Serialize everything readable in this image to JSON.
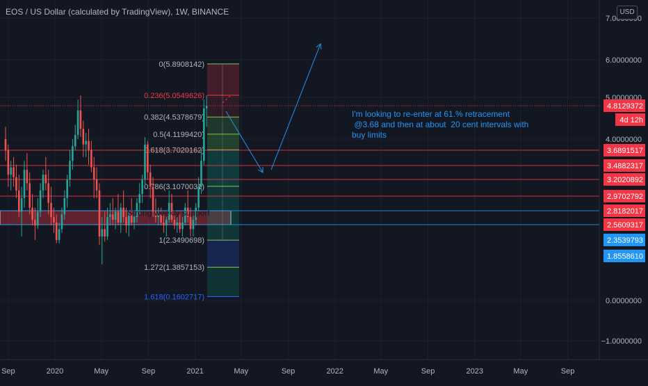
{
  "header": {
    "title": "EOS / US Dollar (calculated by TradingView), 1W, BINANCE",
    "currency": "USD"
  },
  "chart_data": {
    "type": "candlestick",
    "title": "EOS / US Dollar (calculated by TradingView), 1W, BINANCE",
    "price_axis": {
      "labels": [
        "7.0000000",
        "6.0000000",
        "5.0000000",
        "4.0000000",
        "0.0000000",
        "−1.0000000"
      ],
      "values": [
        7,
        6,
        5,
        4,
        0,
        -1
      ]
    },
    "time_axis": {
      "labels": [
        "Sep",
        "2020",
        "May",
        "Sep",
        "2021",
        "May",
        "Sep",
        "2022",
        "May",
        "Sep",
        "2023",
        "May",
        "Sep"
      ],
      "dates": [
        "2019-09-01",
        "2020-01-01",
        "2020-05-01",
        "2020-09-01",
        "2021-01-01",
        "2021-05-01",
        "2021-09-01",
        "2022-01-01",
        "2022-05-01",
        "2022-09-01",
        "2023-01-01",
        "2023-05-01",
        "2023-09-01"
      ]
    },
    "candles": [
      [
        4.0,
        4.3,
        3.55,
        3.7
      ],
      [
        3.7,
        3.85,
        3.1,
        3.3
      ],
      [
        3.3,
        3.55,
        3.05,
        3.45
      ],
      [
        3.45,
        3.6,
        3.1,
        3.25
      ],
      [
        3.25,
        3.5,
        2.95,
        3.05
      ],
      [
        3.05,
        3.3,
        2.7,
        2.8
      ],
      [
        2.8,
        3.1,
        2.4,
        2.95
      ],
      [
        2.95,
        3.55,
        2.85,
        3.4
      ],
      [
        3.4,
        3.65,
        3.05,
        3.15
      ],
      [
        3.15,
        3.35,
        2.75,
        2.85
      ],
      [
        2.85,
        3.0,
        2.55,
        2.65
      ],
      [
        2.65,
        2.85,
        2.35,
        2.55
      ],
      [
        2.55,
        2.95,
        2.5,
        2.8
      ],
      [
        2.8,
        3.15,
        2.7,
        3.05
      ],
      [
        3.05,
        3.4,
        2.95,
        3.3
      ],
      [
        3.3,
        3.6,
        3.05,
        3.15
      ],
      [
        3.15,
        3.4,
        2.75,
        2.9
      ],
      [
        2.9,
        3.1,
        2.55,
        2.7
      ],
      [
        2.7,
        2.85,
        2.45,
        2.6
      ],
      [
        2.6,
        2.75,
        2.25,
        2.35
      ],
      [
        2.35,
        2.6,
        2.25,
        2.5
      ],
      [
        2.5,
        2.85,
        2.45,
        2.75
      ],
      [
        2.75,
        3.05,
        2.65,
        2.95
      ],
      [
        2.95,
        3.3,
        2.85,
        3.2
      ],
      [
        3.2,
        3.7,
        3.1,
        3.55
      ],
      [
        3.55,
        4.0,
        3.4,
        3.8
      ],
      [
        3.8,
        4.35,
        3.7,
        4.1
      ],
      [
        4.1,
        4.95,
        4.0,
        4.7
      ],
      [
        4.7,
        5.05,
        4.05,
        4.25
      ],
      [
        4.25,
        4.45,
        3.6,
        3.85
      ],
      [
        3.85,
        4.15,
        3.6,
        3.95
      ],
      [
        3.95,
        4.25,
        3.5,
        3.7
      ],
      [
        3.7,
        3.95,
        3.35,
        3.45
      ],
      [
        3.45,
        3.6,
        2.95,
        3.2
      ],
      [
        3.2,
        3.45,
        2.95,
        3.05
      ],
      [
        3.05,
        3.15,
        2.2,
        2.4
      ],
      [
        2.4,
        2.7,
        1.5,
        2.5
      ],
      [
        2.5,
        2.8,
        2.3,
        2.4
      ],
      [
        2.4,
        2.85,
        2.35,
        2.7
      ],
      [
        2.7,
        2.9,
        2.55,
        2.75
      ],
      [
        2.75,
        2.95,
        2.55,
        2.65
      ],
      [
        2.65,
        2.85,
        2.5,
        2.8
      ],
      [
        2.8,
        3.0,
        2.55,
        2.6
      ],
      [
        2.6,
        2.9,
        2.45,
        2.85
      ],
      [
        2.85,
        3.05,
        2.6,
        2.7
      ],
      [
        2.7,
        2.85,
        2.45,
        2.55
      ],
      [
        2.55,
        2.8,
        2.4,
        2.75
      ],
      [
        2.75,
        2.95,
        2.55,
        2.6
      ],
      [
        2.6,
        2.8,
        2.5,
        2.7
      ],
      [
        2.7,
        2.95,
        2.6,
        2.9
      ],
      [
        2.9,
        3.15,
        2.75,
        3.0
      ],
      [
        3.0,
        3.3,
        2.9,
        3.2
      ],
      [
        3.2,
        4.05,
        3.1,
        3.85
      ],
      [
        3.85,
        3.95,
        3.2,
        3.35
      ],
      [
        3.35,
        3.5,
        2.95,
        3.1
      ],
      [
        3.1,
        3.25,
        2.7,
        2.8
      ],
      [
        2.8,
        2.95,
        2.6,
        2.7
      ],
      [
        2.7,
        2.85,
        2.55,
        2.75
      ],
      [
        2.75,
        2.85,
        2.55,
        2.6
      ],
      [
        2.6,
        2.75,
        2.45,
        2.55
      ],
      [
        2.55,
        2.7,
        2.4,
        2.65
      ],
      [
        2.65,
        3.05,
        2.6,
        2.9
      ],
      [
        2.9,
        3.0,
        2.6,
        2.65
      ],
      [
        2.65,
        2.8,
        2.5,
        2.55
      ],
      [
        2.55,
        2.7,
        2.45,
        2.6
      ],
      [
        2.6,
        2.75,
        2.45,
        2.5
      ],
      [
        2.5,
        2.7,
        2.4,
        2.6
      ],
      [
        2.6,
        2.9,
        2.55,
        2.85
      ],
      [
        2.85,
        3.05,
        2.6,
        2.7
      ],
      [
        2.7,
        2.85,
        2.4,
        2.5
      ],
      [
        2.5,
        2.75,
        2.4,
        2.65
      ],
      [
        2.65,
        2.9,
        2.55,
        2.85
      ],
      [
        2.85,
        3.25,
        2.8,
        3.1
      ],
      [
        3.1,
        3.7,
        3.0,
        3.55
      ],
      [
        3.55,
        4.95,
        3.5,
        4.75
      ],
      [
        4.75,
        5.05,
        4.3,
        4.81
      ]
    ],
    "current_price": "4.8129372",
    "countdown": "4d 12h",
    "fibonacci": [
      {
        "label": "0(5.8908142)",
        "level": 5.8908142,
        "color": "#b2b5be"
      },
      {
        "label": "0.236(5.0549626)",
        "level": 5.0549626,
        "color": "#f23645"
      },
      {
        "label": "0.382(4.5378679)",
        "level": 4.5378679,
        "color": "#b2b5be"
      },
      {
        "label": "0.5(4.1199420)",
        "level": 4.119942,
        "color": "#b2b5be"
      },
      {
        "label": "0.618(3.7020162)",
        "level": 3.7020162,
        "color": "#b2b5be"
      },
      {
        "label": "0.786(3.1070031)",
        "level": 3.1070031,
        "color": "#b2b5be"
      },
      {
        "label": "1(2.3490698)",
        "level": 2.3490698,
        "color": "#b2b5be"
      },
      {
        "label": "1.272(1.3857153)",
        "level": 1.3857153,
        "color": "#b2b5be"
      },
      {
        "label": "1.618(0.1602717)",
        "level": 0.1602717,
        "color": "#2962ff"
      }
    ],
    "horizontal_levels": [
      {
        "value": 3.6891517,
        "label": "3.6891517",
        "color": "#f23645"
      },
      {
        "value": 3.4882317,
        "label": "3.4882317",
        "color": "#f23645"
      },
      {
        "value": 3.2020892,
        "label": "3.2020892",
        "color": "#f23645"
      },
      {
        "value": 2.9702792,
        "label": "2.9702792",
        "color": "#f23645"
      },
      {
        "value": 2.8182017,
        "label": "2.8182017",
        "color": "#f23645"
      },
      {
        "value": 2.5609317,
        "label": "2.5609317",
        "color": "#f23645"
      },
      {
        "value": 2.3539793,
        "label": "2.3539793",
        "color": "#2196f3"
      },
      {
        "value": 1.855861,
        "label": "1.8558610",
        "color": "#2196f3"
      }
    ],
    "support_zone_label": "Strong weekly support",
    "note_lines": [
      "I'm looking to re-enter at 61.% retracement",
      " @3.68 and then at about  20 cent intervals with",
      "buy limits"
    ],
    "colors": {
      "up": "#26a69a",
      "down": "#ef5350",
      "background": "#131722",
      "note": "#2196f3"
    }
  }
}
